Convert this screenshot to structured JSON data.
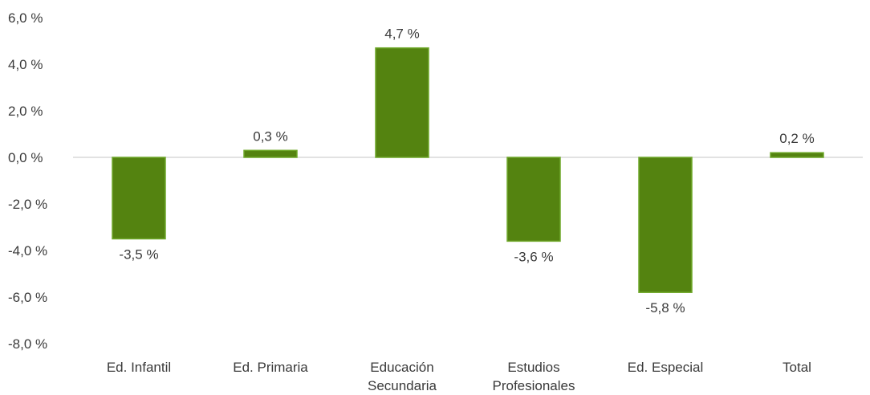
{
  "chart_data": {
    "type": "bar",
    "categories": [
      [
        "Ed. Infantil"
      ],
      [
        "Ed. Primaria"
      ],
      [
        "Educación",
        "Secundaria"
      ],
      [
        "Estudios",
        "Profesionales"
      ],
      [
        "Ed. Especial"
      ],
      [
        "Total"
      ]
    ],
    "values": [
      -3.5,
      0.3,
      4.7,
      -3.6,
      -5.8,
      0.2
    ],
    "value_labels": [
      "-3,5 %",
      "0,3 %",
      "4,7 %",
      "-3,6 %",
      "-5,8 %",
      "0,2 %"
    ],
    "y_ticks": [
      6,
      4,
      2,
      0,
      -2,
      -4,
      -6,
      -8
    ],
    "y_tick_labels": [
      "6,0 %",
      "4,0 %",
      "2,0 %",
      "0,0 %",
      "-2,0 %",
      "-4,0 %",
      "-6,0 %",
      "-8,0 %"
    ],
    "ylim": [
      -8,
      6
    ],
    "title": "",
    "xlabel": "",
    "ylabel": "",
    "grid": false,
    "legend": "none",
    "bar_color": "#548310",
    "bar_edge_color": "#6fa82a",
    "zero_line_color": "#d9d9d9"
  }
}
